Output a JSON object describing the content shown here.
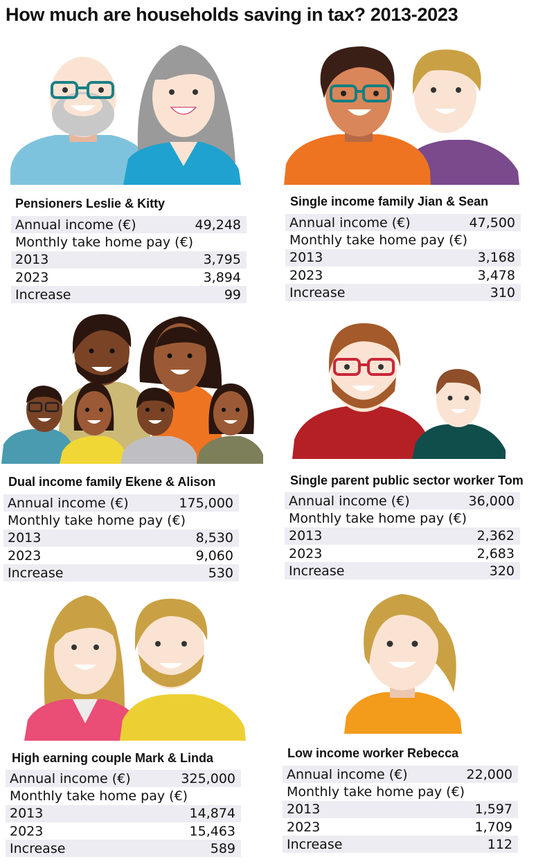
{
  "title": "How much are households saving in tax? 2013-2023",
  "chart_data": {
    "type": "table",
    "title": "How much are households saving in tax? 2013-2023",
    "labels": {
      "income": "Annual income (€)",
      "monthly": "Monthly take home pay (€)",
      "y2013": "2013",
      "y2023": "2023",
      "increase": "Increase"
    },
    "households": [
      {
        "name": "Pensioners Leslie & Kitty",
        "income": "49,248",
        "y2013": "3,795",
        "y2023": "3,894",
        "increase": "99"
      },
      {
        "name": "Single income family Jian & Sean",
        "income": "47,500",
        "y2013": "3,168",
        "y2023": "3,478",
        "increase": "310"
      },
      {
        "name": "Dual income family Ekene & Alison",
        "income": "175,000",
        "y2013": "8,530",
        "y2023": "9,060",
        "increase": "530"
      },
      {
        "name": "Single parent public sector worker Tom",
        "income": "36,000",
        "y2013": "2,362",
        "y2023": "2,683",
        "increase": "320"
      },
      {
        "name": "High earning couple Mark & Linda",
        "income": "325,000",
        "y2013": "14,874",
        "y2023": "15,463",
        "increase": "589"
      },
      {
        "name": "Low income worker Rebecca",
        "income": "22,000",
        "y2013": "1,597",
        "y2023": "1,709",
        "increase": "112"
      }
    ]
  },
  "illustrations": {
    "pensioners": "elderly-couple-icon",
    "jian_sean": "young-couple-icon",
    "ekene_alison": "family-of-six-icon",
    "tom": "father-and-son-icon",
    "mark_linda": "couple-icon",
    "rebecca": "young-woman-icon"
  },
  "colors": {
    "row_shade": "#ececf2",
    "skin_light": "#fbe3d3",
    "skin_tan": "#d9865a",
    "skin_dark": "#9b5a35",
    "light_blue": "#7ec3dd",
    "teal_blue": "#1fa2cf",
    "orange": "#ee7422",
    "purple": "#7a4a8c",
    "red": "#b52025",
    "dark_teal": "#104e4b",
    "pink": "#ea4d76",
    "yellow": "#ecd033",
    "amber": "#f39b1b"
  }
}
